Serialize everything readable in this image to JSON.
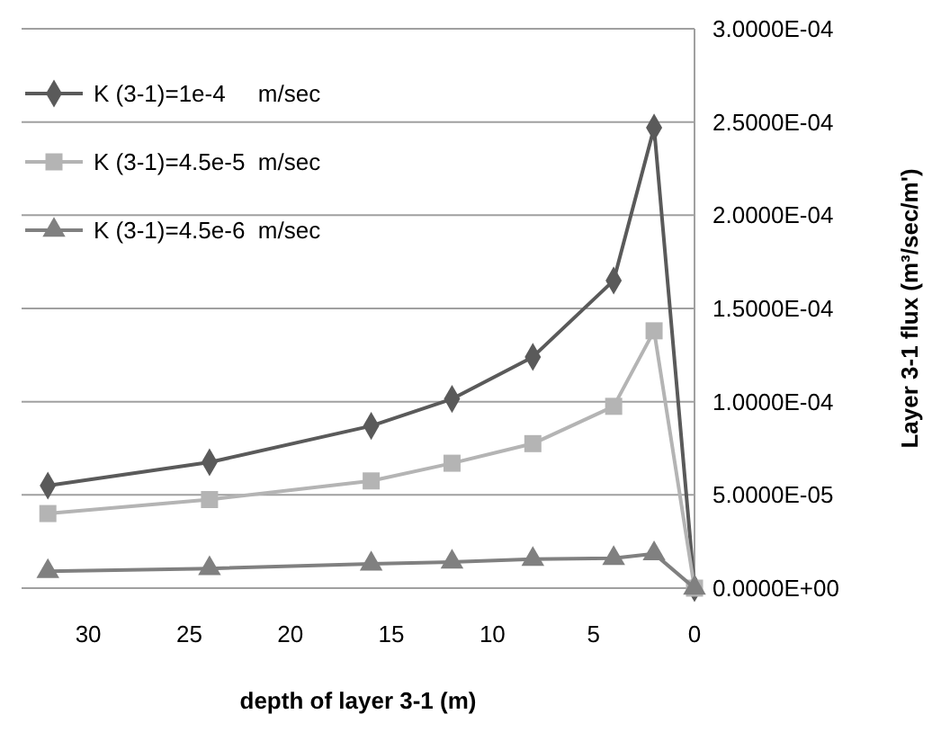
{
  "chart_data": {
    "type": "line",
    "xlabel": "depth of layer 3-1  (m)",
    "ylabel": "Layer 3-1 flux  (m³/sec/m')",
    "x": [
      32,
      24,
      16,
      12,
      8,
      4,
      2,
      0
    ],
    "xlim": [
      33.3,
      0
    ],
    "xticks": [
      30,
      25,
      20,
      15,
      10,
      5,
      0
    ],
    "ylim": [
      0,
      0.0003
    ],
    "yticks": [
      {
        "value": 0,
        "label": "0.0000E+00"
      },
      {
        "value": 5e-05,
        "label": "5.0000E-05"
      },
      {
        "value": 0.0001,
        "label": "1.0000E-04"
      },
      {
        "value": 0.00015,
        "label": "1.5000E-04"
      },
      {
        "value": 0.0002,
        "label": "2.0000E-04"
      },
      {
        "value": 0.00025,
        "label": "2.5000E-04"
      },
      {
        "value": 0.0003,
        "label": "3.0000E-04"
      }
    ],
    "grid": "y",
    "legend": "top left",
    "line_style": "solid",
    "series": [
      {
        "name": "K (3-1)=1e-4     m/sec",
        "color": "#5a5a5a",
        "marker": "diamond",
        "values": [
          5.5e-05,
          6.75e-05,
          8.7e-05,
          0.0001015,
          0.000124,
          0.000165,
          0.000247,
          0
        ]
      },
      {
        "name": "K (3-1)=4.5e-5  m/sec",
        "color": "#b4b4b4",
        "marker": "square",
        "values": [
          4e-05,
          4.75e-05,
          5.75e-05,
          6.7e-05,
          7.75e-05,
          9.75e-05,
          0.000138,
          0
        ]
      },
      {
        "name": "K (3-1)=4.5e-6  m/sec",
        "color": "#808080",
        "marker": "triangle",
        "values": [
          9e-06,
          1.05e-05,
          1.3e-05,
          1.4e-05,
          1.55e-05,
          1.6e-05,
          1.85e-05,
          0
        ]
      }
    ]
  }
}
